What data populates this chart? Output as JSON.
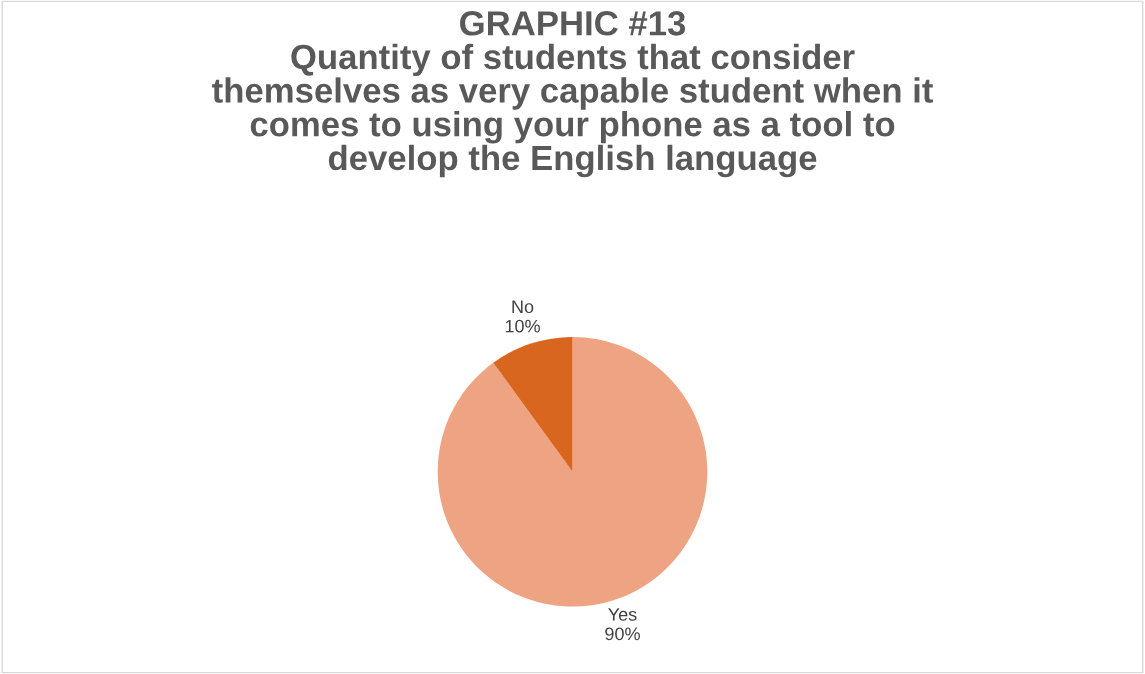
{
  "chart_data": {
    "type": "pie",
    "title": "GRAPHIC #13\nQuantity of students that consider\nthemselves as very capable student when it\ncomes to using your phone as a tool to\ndevelop the English language",
    "categories": [
      "Yes",
      "No"
    ],
    "values": [
      90,
      10
    ],
    "value_labels": [
      "90%",
      "10%"
    ],
    "colors": [
      "#eea383",
      "#d8661f"
    ],
    "legend": false
  }
}
